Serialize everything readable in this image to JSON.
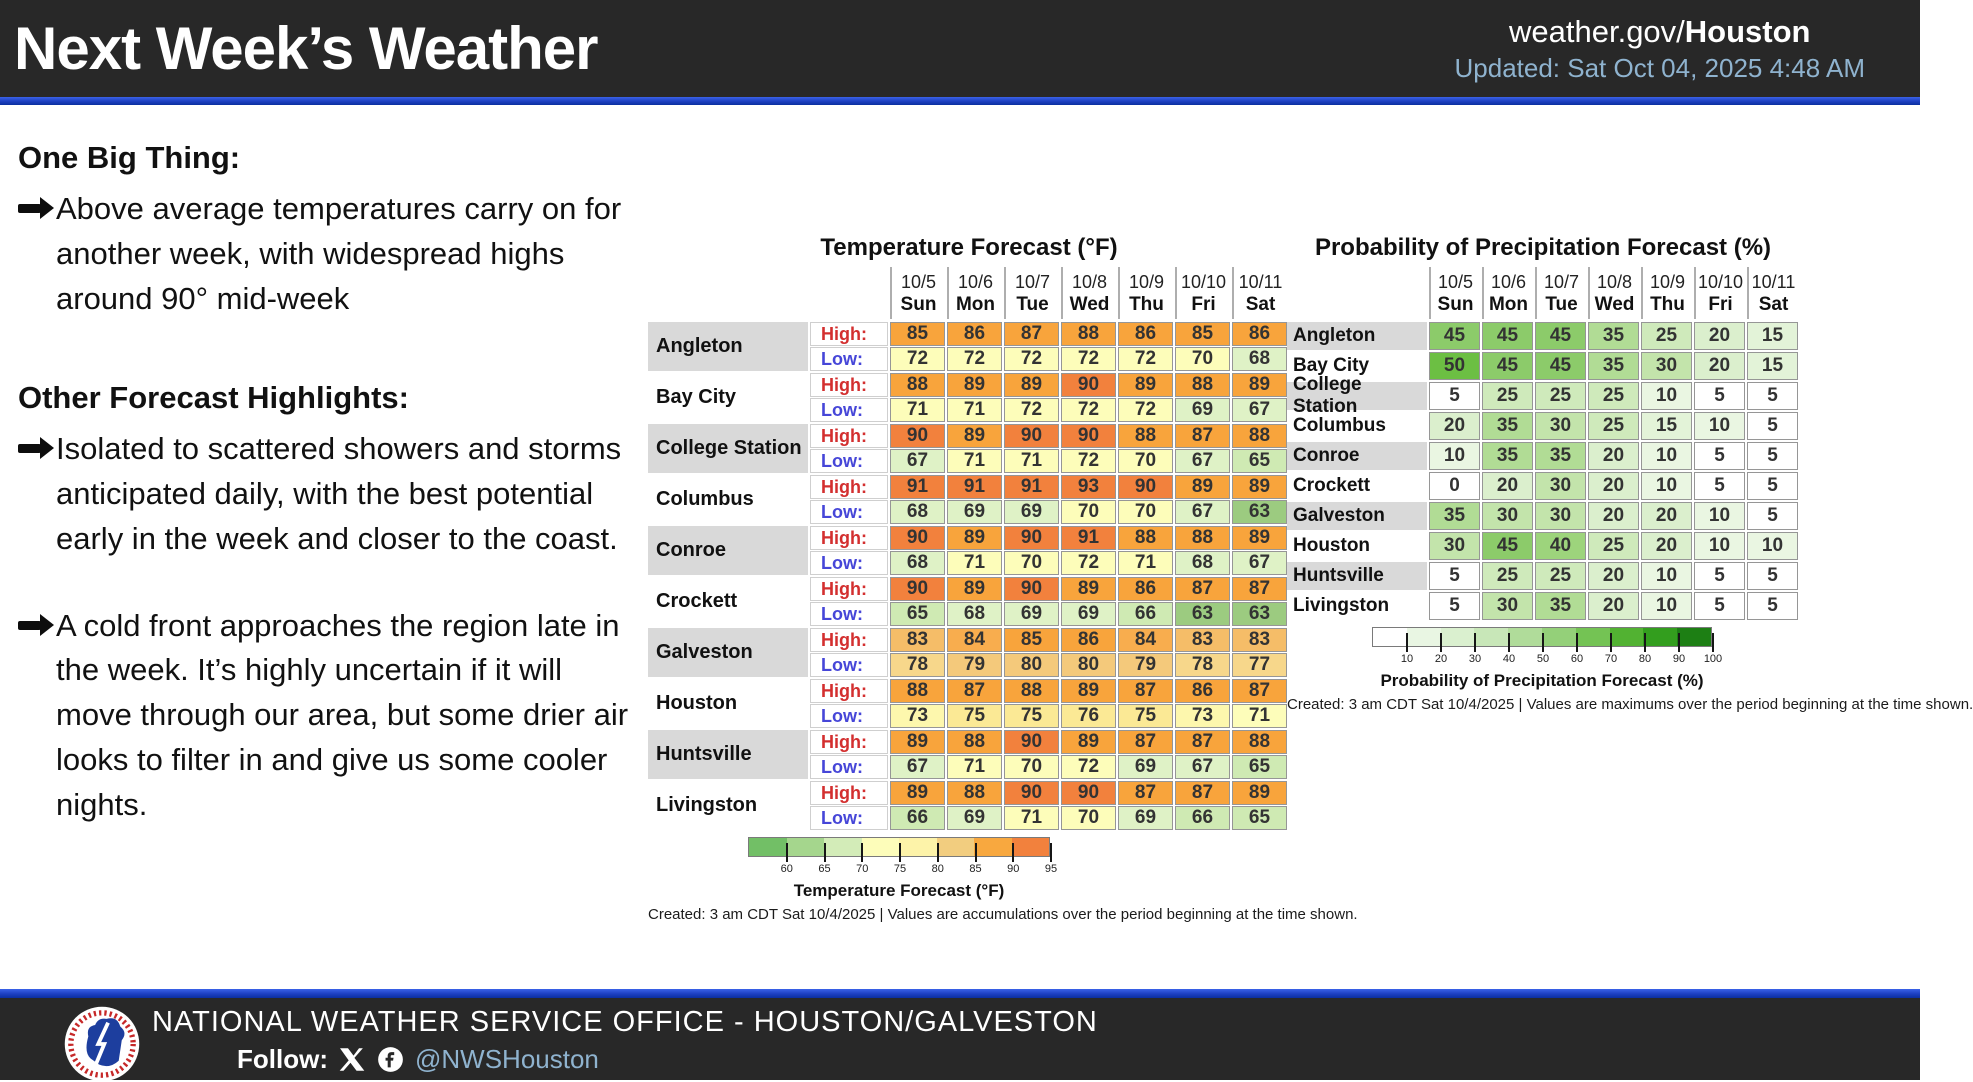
{
  "header": {
    "title": "Next Week’s Weather",
    "site_prefix": "weather.gov/",
    "site_bold": "Houston",
    "updated": "Updated: Sat Oct 04, 2025 4:48 AM"
  },
  "text": {
    "sections": [
      {
        "title": "One Big Thing:",
        "bullets": [
          "Above average temperatures carry on for another week, with widespread highs around 90° mid-week"
        ]
      },
      {
        "title": "Other Forecast Highlights:",
        "bullets": [
          "Isolated to scattered showers and storms anticipated daily, with the best potential early in the week and closer to the coast.",
          "A cold front approaches the region late in the week. It’s highly uncertain if it will move through our area, but some drier air looks to filter in and give us some cooler nights."
        ]
      }
    ]
  },
  "chart_data": [
    {
      "type": "heatmap",
      "title": "Temperature Forecast (°F)",
      "columns": [
        {
          "date": "10/5",
          "day": "Sun"
        },
        {
          "date": "10/6",
          "day": "Mon"
        },
        {
          "date": "10/7",
          "day": "Tue"
        },
        {
          "date": "10/8",
          "day": "Wed"
        },
        {
          "date": "10/9",
          "day": "Thu"
        },
        {
          "date": "10/10",
          "day": "Fri"
        },
        {
          "date": "10/11",
          "day": "Sat"
        }
      ],
      "row_labels": {
        "high": "High:",
        "low": "Low:"
      },
      "cities": [
        {
          "name": "Angleton",
          "high": [
            85,
            86,
            87,
            88,
            86,
            85,
            86
          ],
          "low": [
            72,
            72,
            72,
            72,
            72,
            70,
            68
          ]
        },
        {
          "name": "Bay City",
          "high": [
            88,
            89,
            89,
            90,
            89,
            88,
            89
          ],
          "low": [
            71,
            71,
            72,
            72,
            72,
            69,
            67
          ]
        },
        {
          "name": "College Station",
          "high": [
            90,
            89,
            90,
            90,
            88,
            87,
            88
          ],
          "low": [
            67,
            71,
            71,
            72,
            70,
            67,
            65
          ]
        },
        {
          "name": "Columbus",
          "high": [
            91,
            91,
            91,
            93,
            90,
            89,
            89
          ],
          "low": [
            68,
            69,
            69,
            70,
            70,
            67,
            63
          ]
        },
        {
          "name": "Conroe",
          "high": [
            90,
            89,
            90,
            91,
            88,
            88,
            89
          ],
          "low": [
            68,
            71,
            70,
            72,
            71,
            68,
            67
          ]
        },
        {
          "name": "Crockett",
          "high": [
            90,
            89,
            90,
            89,
            86,
            87,
            87
          ],
          "low": [
            65,
            68,
            69,
            69,
            66,
            63,
            63
          ]
        },
        {
          "name": "Galveston",
          "high": [
            83,
            84,
            85,
            86,
            84,
            83,
            83
          ],
          "low": [
            78,
            79,
            80,
            80,
            79,
            78,
            77
          ]
        },
        {
          "name": "Houston",
          "high": [
            88,
            87,
            88,
            89,
            87,
            86,
            87
          ],
          "low": [
            73,
            75,
            75,
            76,
            75,
            73,
            71
          ]
        },
        {
          "name": "Huntsville",
          "high": [
            89,
            88,
            90,
            89,
            87,
            87,
            88
          ],
          "low": [
            67,
            71,
            70,
            72,
            69,
            67,
            65
          ]
        },
        {
          "name": "Livingston",
          "high": [
            89,
            88,
            90,
            90,
            87,
            87,
            89
          ],
          "low": [
            66,
            69,
            71,
            70,
            69,
            66,
            65
          ]
        }
      ],
      "legend": {
        "ticks": [
          60,
          65,
          70,
          75,
          80,
          85,
          90,
          95
        ],
        "segment_colors": [
          "#72bf66",
          "#a5d68d",
          "#d3ecb8",
          "#fdfdba",
          "#fdf3a9",
          "#f2cd7f",
          "#f8a83f",
          "#f2813d"
        ],
        "label": "Temperature Forecast (°F)"
      },
      "created": "Created: 3 am CDT Sat 10/4/2025  |  Values are accumulations over the period beginning at the time shown."
    },
    {
      "type": "heatmap",
      "title": "Probability of Precipitation Forecast (%)",
      "columns": [
        {
          "date": "10/5",
          "day": "Sun"
        },
        {
          "date": "10/6",
          "day": "Mon"
        },
        {
          "date": "10/7",
          "day": "Tue"
        },
        {
          "date": "10/8",
          "day": "Wed"
        },
        {
          "date": "10/9",
          "day": "Thu"
        },
        {
          "date": "10/10",
          "day": "Fri"
        },
        {
          "date": "10/11",
          "day": "Sat"
        }
      ],
      "cities": [
        {
          "name": "Angleton",
          "values": [
            45,
            45,
            45,
            35,
            25,
            20,
            15
          ]
        },
        {
          "name": "Bay City",
          "values": [
            50,
            45,
            45,
            35,
            30,
            20,
            15
          ]
        },
        {
          "name": "College Station",
          "values": [
            5,
            25,
            25,
            25,
            10,
            5,
            5
          ]
        },
        {
          "name": "Columbus",
          "values": [
            20,
            35,
            30,
            25,
            15,
            10,
            5
          ]
        },
        {
          "name": "Conroe",
          "values": [
            10,
            35,
            35,
            20,
            10,
            5,
            5
          ]
        },
        {
          "name": "Crockett",
          "values": [
            0,
            20,
            30,
            20,
            10,
            5,
            5
          ]
        },
        {
          "name": "Galveston",
          "values": [
            35,
            30,
            30,
            20,
            20,
            10,
            5
          ]
        },
        {
          "name": "Houston",
          "values": [
            30,
            45,
            40,
            25,
            20,
            10,
            10
          ]
        },
        {
          "name": "Huntsville",
          "values": [
            5,
            25,
            25,
            20,
            10,
            5,
            5
          ]
        },
        {
          "name": "Livingston",
          "values": [
            5,
            30,
            35,
            20,
            10,
            5,
            5
          ]
        }
      ],
      "legend": {
        "ticks": [
          10,
          20,
          30,
          40,
          50,
          60,
          70,
          80,
          90,
          100
        ],
        "segment_colors": [
          "#ffffff",
          "#e9f6e3",
          "#daf0cf",
          "#c8e7b8",
          "#b0dc9a",
          "#94d079",
          "#74c354",
          "#52b232",
          "#339e1e",
          "#1d7f14"
        ],
        "label": "Probability of Precipitation Forecast (%)"
      },
      "created": "Created: 3 am CDT Sat 10/4/2025  |  Values are maximums over the period beginning at the time shown."
    }
  ],
  "footer": {
    "office": "NATIONAL WEATHER SERVICE OFFICE - HOUSTON/GALVESTON",
    "follow_label": "Follow:",
    "handle": "@NWSHouston"
  },
  "icons": {
    "bullet": "arrow-icon",
    "social": [
      "x-social-icon",
      "facebook-icon"
    ],
    "logo": "nws-logo"
  },
  "colors": {
    "header_bg": "#282828",
    "divider_blue": "#1c3fc0",
    "updated_text": "#8fb3cf",
    "handle_text": "#8fb3cf",
    "high_label": "#d32f2f",
    "low_label": "#4646d8",
    "city_row_gray": "#d9d9d9"
  }
}
